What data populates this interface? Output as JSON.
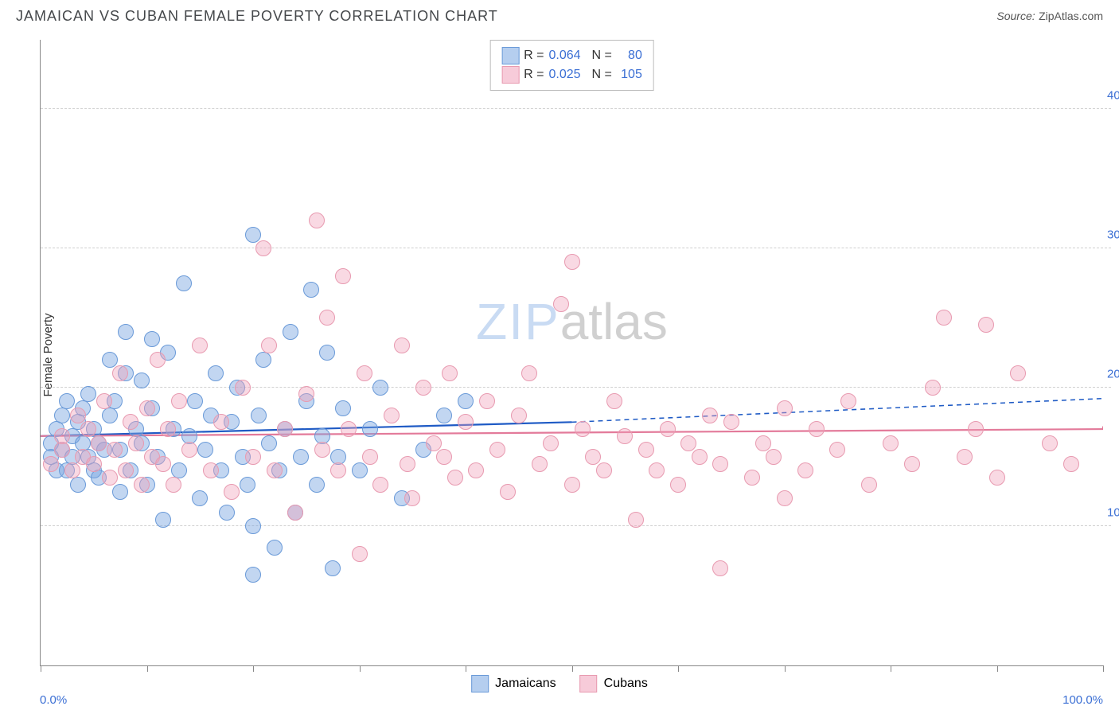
{
  "title": "JAMAICAN VS CUBAN FEMALE POVERTY CORRELATION CHART",
  "source_label": "Source:",
  "source_name": "ZipAtlas.com",
  "y_axis_label": "Female Poverty",
  "watermark": {
    "part1": "ZIP",
    "part2": "atlas"
  },
  "chart": {
    "type": "scatter",
    "background_color": "#ffffff",
    "grid_color": "#d0d0d0",
    "axis_color": "#888888",
    "tick_label_color": "#3b6fd4",
    "xlim": [
      0,
      100
    ],
    "ylim": [
      0,
      45
    ],
    "x_min_label": "0.0%",
    "x_max_label": "100.0%",
    "y_ticks": [
      {
        "value": 10,
        "label": "10.0%"
      },
      {
        "value": 20,
        "label": "20.0%"
      },
      {
        "value": 30,
        "label": "30.0%"
      },
      {
        "value": 40,
        "label": "40.0%"
      }
    ],
    "x_tick_positions": [
      0,
      10,
      20,
      30,
      40,
      50,
      60,
      70,
      80,
      90,
      100
    ],
    "marker_radius": 9,
    "series": [
      {
        "name": "Jamaicans",
        "key": "jamaicans",
        "color_fill": "rgba(120,165,225,0.45)",
        "color_stroke": "#6a9ad8",
        "r_value": "0.064",
        "n_value": "80",
        "trend": {
          "y_at_x0": 16.5,
          "y_at_x50": 17.5,
          "solid_end_x": 50,
          "y_at_x100": 19.2,
          "stroke": "#1f5bc5",
          "width": 2.2
        },
        "points": [
          [
            1,
            15
          ],
          [
            1,
            16
          ],
          [
            1.5,
            17
          ],
          [
            1.5,
            14
          ],
          [
            2,
            18
          ],
          [
            2,
            15.5
          ],
          [
            2.5,
            19
          ],
          [
            2.5,
            14
          ],
          [
            3,
            15
          ],
          [
            3,
            16.5
          ],
          [
            3.5,
            17.5
          ],
          [
            3.5,
            13
          ],
          [
            4,
            18.5
          ],
          [
            4,
            16
          ],
          [
            4.5,
            15
          ],
          [
            4.5,
            19.5
          ],
          [
            5,
            14
          ],
          [
            5,
            17
          ],
          [
            5.5,
            13.5
          ],
          [
            5.5,
            16
          ],
          [
            6,
            15.5
          ],
          [
            6.5,
            22
          ],
          [
            6.5,
            18
          ],
          [
            7,
            19
          ],
          [
            7.5,
            12.5
          ],
          [
            7.5,
            15.5
          ],
          [
            8,
            21
          ],
          [
            8,
            24
          ],
          [
            8.5,
            14
          ],
          [
            9,
            17
          ],
          [
            9.5,
            20.5
          ],
          [
            9.5,
            16
          ],
          [
            10,
            13
          ],
          [
            10.5,
            23.5
          ],
          [
            10.5,
            18.5
          ],
          [
            11,
            15
          ],
          [
            11.5,
            10.5
          ],
          [
            12,
            22.5
          ],
          [
            12.5,
            17
          ],
          [
            13,
            14
          ],
          [
            13.5,
            27.5
          ],
          [
            14,
            16.5
          ],
          [
            14.5,
            19
          ],
          [
            15,
            12
          ],
          [
            15.5,
            15.5
          ],
          [
            16,
            18
          ],
          [
            16.5,
            21
          ],
          [
            17,
            14
          ],
          [
            17.5,
            11
          ],
          [
            18,
            17.5
          ],
          [
            18.5,
            20
          ],
          [
            19,
            15
          ],
          [
            19.5,
            13
          ],
          [
            20,
            10
          ],
          [
            20,
            31
          ],
          [
            20.5,
            18
          ],
          [
            21,
            22
          ],
          [
            21.5,
            16
          ],
          [
            22,
            8.5
          ],
          [
            22.5,
            14
          ],
          [
            23,
            17
          ],
          [
            23.5,
            24
          ],
          [
            24,
            11
          ],
          [
            24.5,
            15
          ],
          [
            25,
            19
          ],
          [
            25.5,
            27
          ],
          [
            26,
            13
          ],
          [
            26.5,
            16.5
          ],
          [
            27,
            22.5
          ],
          [
            27.5,
            7
          ],
          [
            28,
            15
          ],
          [
            28.5,
            18.5
          ],
          [
            20,
            6.5
          ],
          [
            30,
            14
          ],
          [
            31,
            17
          ],
          [
            32,
            20
          ],
          [
            34,
            12
          ],
          [
            36,
            15.5
          ],
          [
            38,
            18
          ],
          [
            40,
            19
          ]
        ]
      },
      {
        "name": "Cubans",
        "key": "cubans",
        "color_fill": "rgba(240,160,185,0.4)",
        "color_stroke": "#e89ab0",
        "r_value": "0.025",
        "n_value": "105",
        "trend": {
          "y_at_x0": 16.5,
          "y_at_x50": 17.0,
          "solid_end_x": 100,
          "y_at_x100": 17.2,
          "stroke": "#e37a9a",
          "width": 2.2
        },
        "points": [
          [
            1,
            14.5
          ],
          [
            2,
            15.5
          ],
          [
            2,
            16.5
          ],
          [
            3,
            14
          ],
          [
            3.5,
            18
          ],
          [
            4,
            15
          ],
          [
            4.5,
            17
          ],
          [
            5,
            14.5
          ],
          [
            5.5,
            16
          ],
          [
            6,
            19
          ],
          [
            6.5,
            13.5
          ],
          [
            7,
            15.5
          ],
          [
            7.5,
            21
          ],
          [
            8,
            14
          ],
          [
            8.5,
            17.5
          ],
          [
            9,
            16
          ],
          [
            9.5,
            13
          ],
          [
            10,
            18.5
          ],
          [
            10.5,
            15
          ],
          [
            11,
            22
          ],
          [
            11.5,
            14.5
          ],
          [
            12,
            17
          ],
          [
            12.5,
            13
          ],
          [
            13,
            19
          ],
          [
            14,
            15.5
          ],
          [
            15,
            23
          ],
          [
            16,
            14
          ],
          [
            17,
            17.5
          ],
          [
            18,
            12.5
          ],
          [
            19,
            20
          ],
          [
            20,
            15
          ],
          [
            21,
            30
          ],
          [
            21.5,
            23
          ],
          [
            22,
            14
          ],
          [
            23,
            17
          ],
          [
            24,
            11
          ],
          [
            25,
            19.5
          ],
          [
            26,
            32
          ],
          [
            26.5,
            15.5
          ],
          [
            27,
            25
          ],
          [
            28,
            14
          ],
          [
            28.5,
            28
          ],
          [
            29,
            17
          ],
          [
            30,
            8
          ],
          [
            30.5,
            21
          ],
          [
            31,
            15
          ],
          [
            32,
            13
          ],
          [
            33,
            18
          ],
          [
            34,
            23
          ],
          [
            34.5,
            14.5
          ],
          [
            35,
            12
          ],
          [
            36,
            20
          ],
          [
            37,
            16
          ],
          [
            38,
            15
          ],
          [
            38.5,
            21
          ],
          [
            39,
            13.5
          ],
          [
            40,
            17.5
          ],
          [
            41,
            14
          ],
          [
            42,
            19
          ],
          [
            43,
            15.5
          ],
          [
            44,
            12.5
          ],
          [
            45,
            18
          ],
          [
            46,
            21
          ],
          [
            47,
            14.5
          ],
          [
            48,
            16
          ],
          [
            49,
            26
          ],
          [
            50,
            13
          ],
          [
            50,
            29
          ],
          [
            51,
            17
          ],
          [
            52,
            15
          ],
          [
            53,
            14
          ],
          [
            54,
            19
          ],
          [
            55,
            16.5
          ],
          [
            56,
            10.5
          ],
          [
            57,
            15.5
          ],
          [
            58,
            14
          ],
          [
            59,
            17
          ],
          [
            60,
            13
          ],
          [
            61,
            16
          ],
          [
            62,
            15
          ],
          [
            63,
            18
          ],
          [
            64,
            14.5
          ],
          [
            64,
            7
          ],
          [
            65,
            17.5
          ],
          [
            67,
            13.5
          ],
          [
            68,
            16
          ],
          [
            69,
            15
          ],
          [
            70,
            18.5
          ],
          [
            70,
            12
          ],
          [
            72,
            14
          ],
          [
            73,
            17
          ],
          [
            75,
            15.5
          ],
          [
            76,
            19
          ],
          [
            78,
            13
          ],
          [
            80,
            16
          ],
          [
            82,
            14.5
          ],
          [
            84,
            20
          ],
          [
            85,
            25
          ],
          [
            87,
            15
          ],
          [
            88,
            17
          ],
          [
            89,
            24.5
          ],
          [
            90,
            13.5
          ],
          [
            92,
            21
          ],
          [
            95,
            16
          ],
          [
            97,
            14.5
          ]
        ]
      }
    ]
  },
  "legend": {
    "stat_labels": {
      "r": "R =",
      "n": "N ="
    },
    "bottom_items": [
      {
        "key": "jamaicans",
        "label": "Jamaicans",
        "class": "blue"
      },
      {
        "key": "cubans",
        "label": "Cubans",
        "class": "pink"
      }
    ]
  }
}
